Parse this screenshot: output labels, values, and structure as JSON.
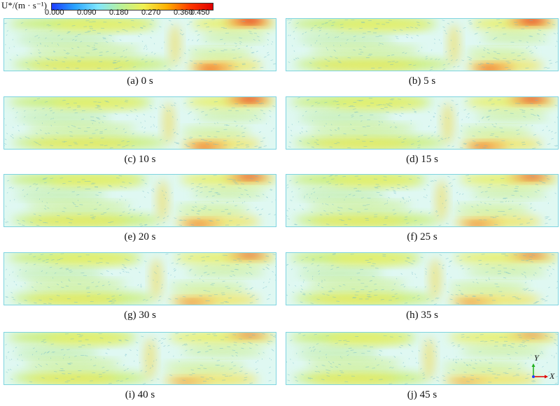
{
  "legend": {
    "title": "U*/(m · s⁻¹)",
    "ticks": [
      "0.000",
      "0.090",
      "0.180",
      "0.270",
      "0.360",
      "0.450"
    ],
    "colormap": [
      "#1e3cff",
      "#29a3ff",
      "#7fe6ff",
      "#b8f09a",
      "#f0f050",
      "#ffb000",
      "#ff3a00",
      "#e00000"
    ]
  },
  "panels": [
    {
      "caption": "(a) 0 s"
    },
    {
      "caption": "(b) 5 s"
    },
    {
      "caption": "(c) 10 s"
    },
    {
      "caption": "(d) 15 s"
    },
    {
      "caption": "(e) 20 s"
    },
    {
      "caption": "(f) 25 s"
    },
    {
      "caption": "(g) 30 s"
    },
    {
      "caption": "(h) 35 s"
    },
    {
      "caption": "(i) 40 s"
    },
    {
      "caption": "(j) 45 s"
    }
  ],
  "axes": {
    "y_label": "Y",
    "x_label": "X",
    "colors": {
      "x": "#e00000",
      "y": "#20b020",
      "z": "#2040ff"
    }
  }
}
